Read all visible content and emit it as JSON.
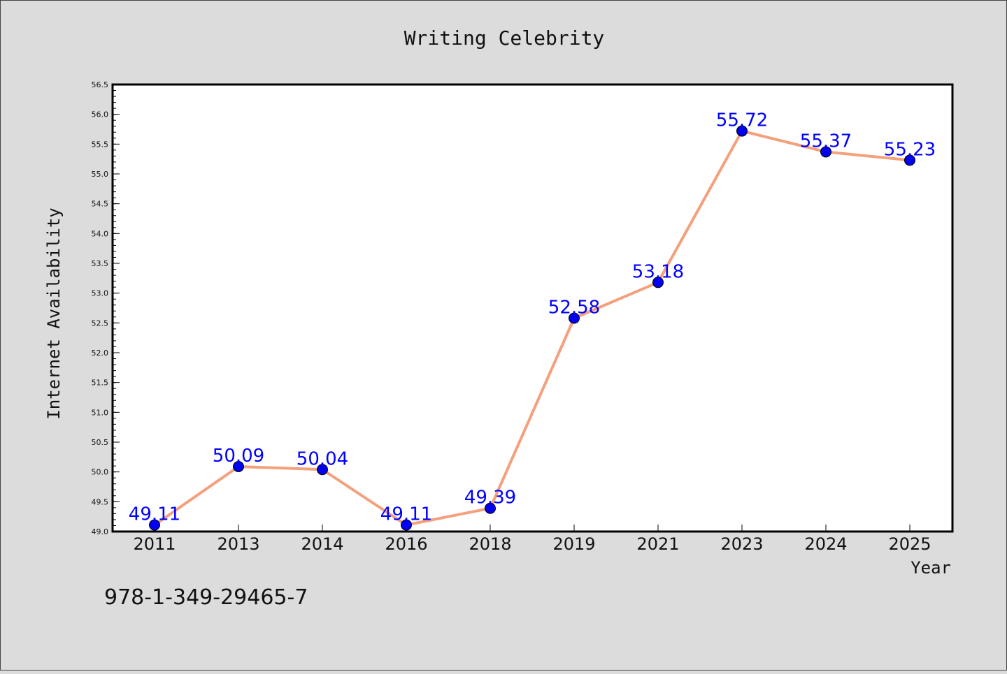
{
  "chart_data": {
    "type": "line",
    "title": "Writing Celebrity",
    "xlabel": "Year",
    "ylabel": "Internet Availability",
    "categories": [
      "2011",
      "2013",
      "2014",
      "2016",
      "2018",
      "2019",
      "2021",
      "2023",
      "2024",
      "2025"
    ],
    "series": [
      {
        "values": [
          49.11,
          50.09,
          50.04,
          49.11,
          49.39,
          52.58,
          53.18,
          55.72,
          55.37,
          55.23
        ],
        "line_color": "#f4a07c",
        "marker_color": "#0000ee",
        "label_color": "#0000ff"
      }
    ],
    "ylim": [
      49.0,
      56.5
    ],
    "yticks": [
      "49.0",
      "49.5",
      "50.0",
      "50.5",
      "51.0",
      "51.5",
      "52.0",
      "52.5",
      "53.0",
      "53.5",
      "54.0",
      "54.5",
      "55.0",
      "55.5",
      "56.0",
      "56.5"
    ],
    "grid": false,
    "legend": "none",
    "footer_text": "978-1-349-29465-7"
  }
}
